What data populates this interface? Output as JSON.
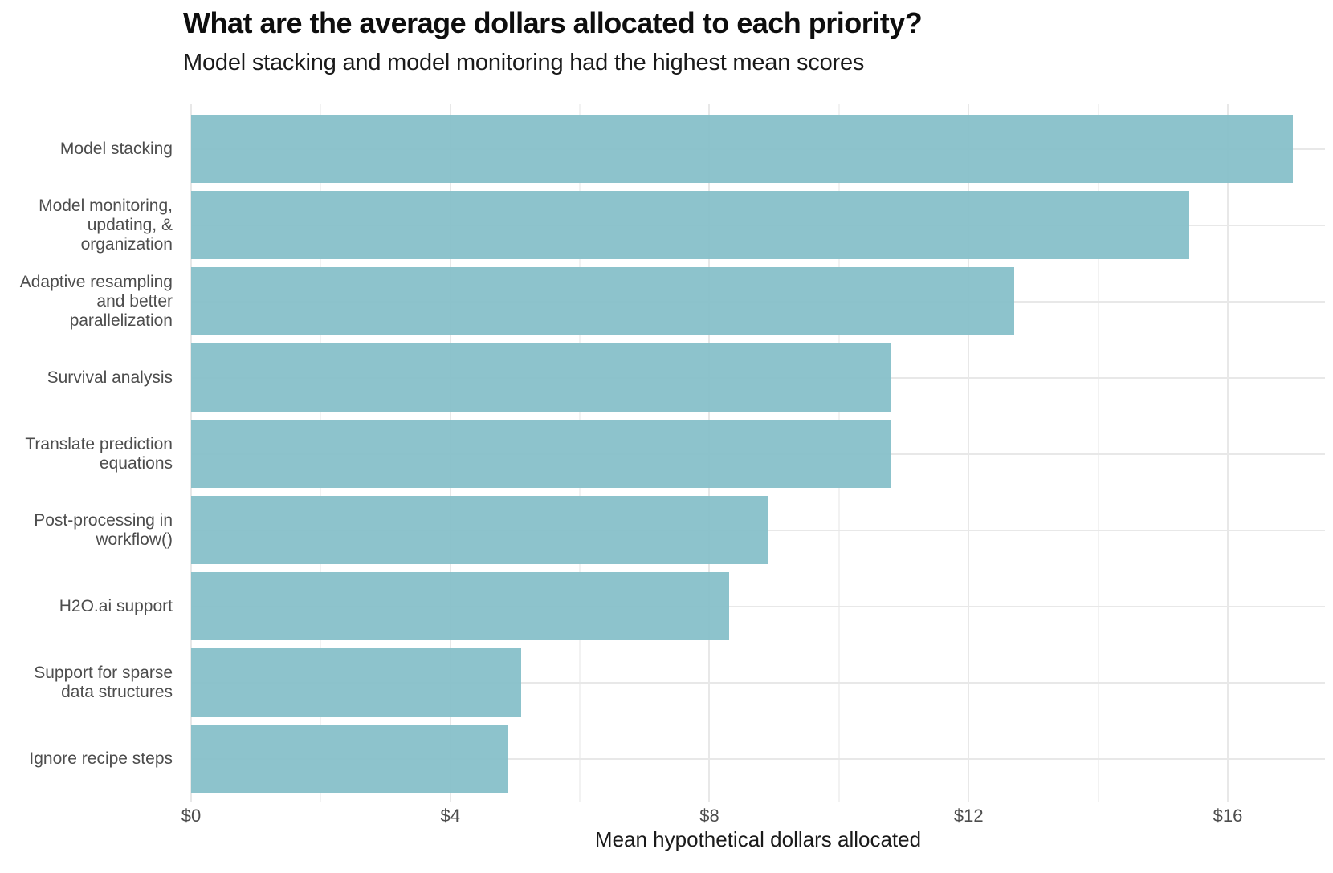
{
  "chart_data": {
    "type": "bar",
    "orientation": "horizontal",
    "title": "What are the average dollars allocated to each priority?",
    "subtitle": "Model stacking and model monitoring had the highest mean scores",
    "xlabel": "Mean hypothetical dollars allocated",
    "ylabel": "",
    "categories": [
      "Model stacking",
      "Model monitoring,\nupdating, &\norganization",
      "Adaptive resampling\nand better\nparallelization",
      "Survival analysis",
      "Translate prediction\nequations",
      "Post-processing in\nworkflow()",
      "H2O.ai support",
      "Support for sparse\ndata structures",
      "Ignore recipe steps"
    ],
    "values": [
      17.0,
      15.4,
      12.7,
      10.8,
      10.8,
      8.9,
      8.3,
      5.1,
      4.9
    ],
    "x_ticks": [
      {
        "value": 0,
        "label": "$0"
      },
      {
        "value": 4,
        "label": "$4"
      },
      {
        "value": 8,
        "label": "$8"
      },
      {
        "value": 12,
        "label": "$12"
      },
      {
        "value": 16,
        "label": "$16"
      }
    ],
    "x_minor_ticks": [
      2,
      6,
      10,
      14
    ],
    "xlim": [
      0,
      17.5
    ],
    "grid": true,
    "legend": false,
    "colors": {
      "bar_fill": "#87C0C9",
      "bar_opacity": 0.95,
      "grid_major": "#E8E8E8",
      "grid_minor": "#F2F2F2",
      "axis_text": "#4D4D4D",
      "axis_title": "#1A1A1A",
      "title": "#0E0E0E",
      "subtitle": "#1A1A1A",
      "background": "#FFFFFF"
    }
  }
}
